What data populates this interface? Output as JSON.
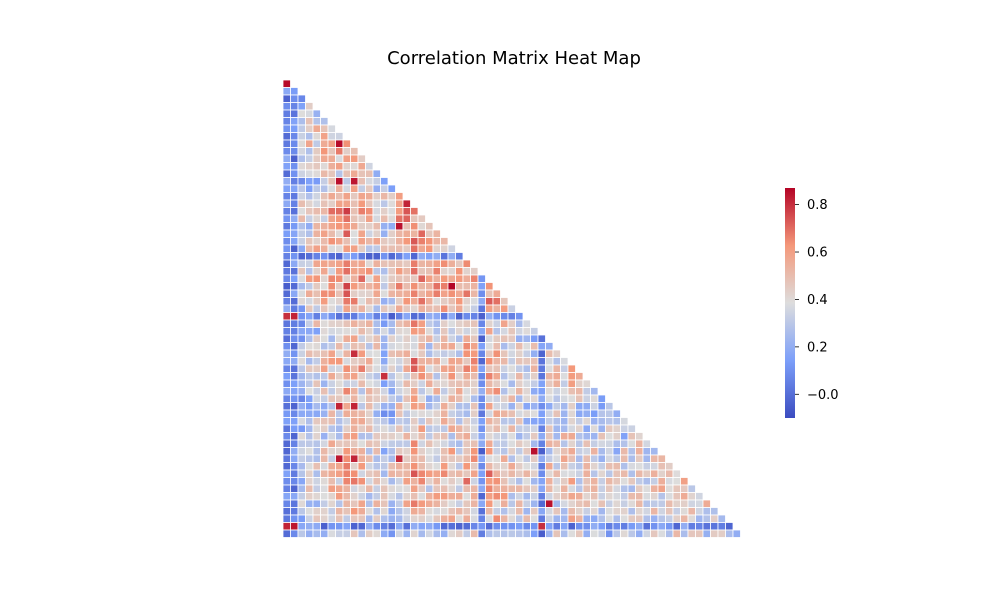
{
  "chart_data": {
    "type": "heatmap",
    "title": "Correlation Matrix Heat Map",
    "mask": "upper-triangle",
    "size": 61,
    "colormap": "coolwarm",
    "cell_border_color": "#ffffff",
    "colorbar": {
      "range": [
        -0.1,
        0.87
      ],
      "ticks": [
        -0.0,
        0.2,
        0.4,
        0.6,
        0.8
      ],
      "tick_labels": [
        "−0.0",
        "0.2",
        "0.4",
        "0.6",
        "0.8"
      ],
      "placement": "right"
    },
    "row_profiles": {
      "baseline": [
        0.85,
        0.15,
        0.12,
        0.3,
        0.35,
        0.38,
        0.45,
        0.5,
        0.62,
        0.55,
        0.5,
        0.4,
        0.35,
        0.25,
        0.3,
        0.45,
        0.55,
        0.68,
        0.6,
        0.42,
        0.5,
        0.55,
        0.52,
        0.48,
        0.6,
        0.55,
        0.58,
        0.62,
        0.6,
        0.5,
        0.45,
        0.4,
        0.35,
        0.3,
        0.3,
        0.35,
        0.4,
        0.45,
        0.5,
        0.4,
        0.38,
        0.35,
        0.3,
        0.28,
        0.25,
        0.3,
        0.32,
        0.35,
        0.38,
        0.4,
        0.42,
        0.45,
        0.5,
        0.48,
        0.45,
        0.42,
        0.4,
        0.38,
        0.35,
        0.3,
        0.2
      ],
      "low_rows": [
        23,
        31,
        59
      ],
      "low_cols": [
        0,
        1,
        26,
        34
      ],
      "high_cells": [
        {
          "row": 0,
          "col": 0,
          "value": 0.86
        },
        {
          "row": 8,
          "col": 7,
          "value": 0.86
        },
        {
          "row": 13,
          "col": 7,
          "value": 0.85
        },
        {
          "row": 13,
          "col": 9,
          "value": 0.84
        },
        {
          "row": 16,
          "col": 16,
          "value": 0.82
        },
        {
          "row": 19,
          "col": 15,
          "value": 0.85
        },
        {
          "row": 27,
          "col": 22,
          "value": 0.87
        },
        {
          "row": 31,
          "col": 0,
          "value": 0.8
        },
        {
          "row": 31,
          "col": 1,
          "value": 0.82
        },
        {
          "row": 36,
          "col": 9,
          "value": 0.8
        },
        {
          "row": 39,
          "col": 13,
          "value": 0.8
        },
        {
          "row": 43,
          "col": 7,
          "value": 0.82
        },
        {
          "row": 43,
          "col": 9,
          "value": 0.82
        },
        {
          "row": 49,
          "col": 33,
          "value": 0.85
        },
        {
          "row": 50,
          "col": 7,
          "value": 0.84
        },
        {
          "row": 50,
          "col": 9,
          "value": 0.82
        },
        {
          "row": 50,
          "col": 15,
          "value": 0.8
        },
        {
          "row": 56,
          "col": 35,
          "value": 0.85
        },
        {
          "row": 59,
          "col": 0,
          "value": 0.82
        },
        {
          "row": 59,
          "col": 1,
          "value": 0.84
        },
        {
          "row": 59,
          "col": 34,
          "value": 0.8
        }
      ]
    }
  }
}
